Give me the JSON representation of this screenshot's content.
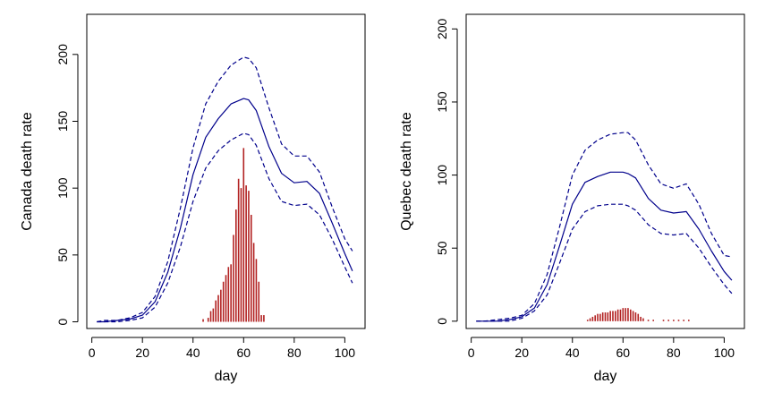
{
  "chart_data": [
    {
      "type": "line",
      "xlabel": "day",
      "ylabel": "Canada death rate",
      "xlim": [
        -2,
        108
      ],
      "ylim": [
        -5,
        230
      ],
      "x_ticks": [
        0,
        20,
        40,
        60,
        80,
        100
      ],
      "y_ticks": [
        0,
        50,
        100,
        150,
        200
      ],
      "series": [
        {
          "role": "estimate",
          "style": "solid",
          "x": [
            2,
            5,
            10,
            15,
            20,
            25,
            30,
            35,
            40,
            45,
            50,
            55,
            60,
            62,
            65,
            70,
            75,
            80,
            85,
            90,
            95,
            100,
            103
          ],
          "values": [
            0,
            0,
            1,
            2,
            5,
            15,
            37,
            70,
            110,
            138,
            152,
            163,
            167,
            166,
            158,
            131,
            111,
            104,
            105,
            96,
            74,
            51,
            38
          ]
        },
        {
          "role": "upper",
          "style": "dashed",
          "x": [
            2,
            5,
            10,
            15,
            20,
            25,
            30,
            35,
            40,
            45,
            50,
            55,
            60,
            62,
            65,
            70,
            75,
            80,
            85,
            90,
            95,
            100,
            103
          ],
          "values": [
            0,
            1,
            1,
            3,
            7,
            19,
            45,
            85,
            130,
            163,
            180,
            192,
            198,
            197,
            190,
            160,
            133,
            124,
            124,
            112,
            86,
            62,
            53
          ]
        },
        {
          "role": "lower",
          "style": "dashed",
          "x": [
            2,
            5,
            10,
            15,
            20,
            25,
            30,
            35,
            40,
            45,
            50,
            55,
            60,
            62,
            65,
            70,
            75,
            80,
            85,
            90,
            95,
            100,
            103
          ],
          "values": [
            0,
            0,
            0,
            1,
            3,
            11,
            29,
            56,
            90,
            115,
            128,
            136,
            141,
            140,
            132,
            107,
            90,
            87,
            88,
            80,
            62,
            41,
            29
          ]
        }
      ],
      "bars": {
        "x": [
          44,
          46,
          47,
          48,
          49,
          50,
          51,
          52,
          53,
          54,
          55,
          56,
          57,
          58,
          59,
          60,
          61,
          62,
          63,
          64,
          65,
          66,
          67,
          68
        ],
        "values": [
          2,
          3,
          8,
          10,
          16,
          20,
          24,
          30,
          35,
          41,
          43,
          65,
          84,
          107,
          100,
          130,
          102,
          98,
          80,
          59,
          47,
          30,
          5,
          5
        ]
      }
    },
    {
      "type": "line",
      "xlabel": "day",
      "ylabel": "Quebec death rate",
      "xlim": [
        -2,
        108
      ],
      "ylim": [
        -5,
        210
      ],
      "x_ticks": [
        0,
        20,
        40,
        60,
        80,
        100
      ],
      "y_ticks": [
        0,
        50,
        100,
        150,
        200
      ],
      "series": [
        {
          "role": "estimate",
          "style": "solid",
          "x": [
            2,
            5,
            10,
            15,
            20,
            25,
            30,
            35,
            40,
            45,
            50,
            55,
            60,
            62,
            65,
            70,
            75,
            80,
            85,
            90,
            95,
            100,
            103
          ],
          "values": [
            0,
            0,
            0,
            1,
            3,
            9,
            25,
            52,
            80,
            95,
            99,
            102,
            102,
            101,
            98,
            84,
            76,
            74,
            75,
            63,
            48,
            34,
            28
          ]
        },
        {
          "role": "upper",
          "style": "dashed",
          "x": [
            2,
            5,
            10,
            15,
            20,
            25,
            30,
            35,
            40,
            45,
            50,
            55,
            60,
            62,
            65,
            70,
            75,
            80,
            85,
            90,
            95,
            100,
            103
          ],
          "values": [
            0,
            0,
            1,
            2,
            4,
            12,
            32,
            65,
            100,
            117,
            124,
            128,
            129,
            129,
            124,
            107,
            94,
            91,
            94,
            80,
            60,
            45,
            44
          ]
        },
        {
          "role": "lower",
          "style": "dashed",
          "x": [
            2,
            5,
            10,
            15,
            20,
            25,
            30,
            35,
            40,
            45,
            50,
            55,
            60,
            62,
            65,
            70,
            75,
            80,
            85,
            90,
            95,
            100,
            103
          ],
          "values": [
            0,
            0,
            0,
            0,
            2,
            7,
            18,
            40,
            63,
            75,
            79,
            80,
            80,
            79,
            76,
            66,
            60,
            59,
            60,
            50,
            37,
            25,
            19
          ]
        }
      ],
      "bars": {
        "x": [
          46,
          47,
          48,
          49,
          50,
          51,
          52,
          53,
          54,
          55,
          56,
          57,
          58,
          59,
          60,
          61,
          62,
          63,
          64,
          65,
          66,
          67,
          68,
          70,
          72,
          76,
          78,
          80,
          82,
          84,
          86
        ],
        "values": [
          1,
          2,
          3,
          4,
          5,
          5,
          6,
          6,
          6,
          7,
          7,
          7,
          8,
          8,
          9,
          9,
          9,
          8,
          7,
          6,
          5,
          3,
          2,
          1,
          1,
          1,
          1,
          1,
          1,
          1,
          1
        ]
      }
    }
  ],
  "colors": {
    "line": "#00008b",
    "bars": "#b22222",
    "axis": "#000000"
  }
}
